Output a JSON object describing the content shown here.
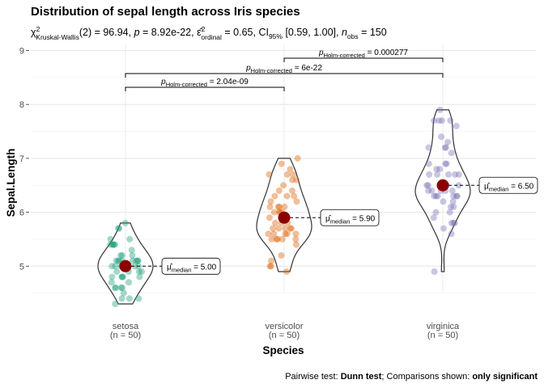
{
  "chart_data": {
    "type": "violin",
    "title": "Distribution of sepal length across Iris species",
    "subtitle": {
      "chi_sym": "χ",
      "chi_sup": "2",
      "chi_sub": "Kruskal-Wallis",
      "stat_text": "(2) = 96.94, ",
      "p_sym": "p",
      "p_text": " = 8.92e-22, ",
      "eps_sym": "ε̂",
      "eps_sup": "2",
      "eps_sub": "ordinal",
      "eps_text": " = 0.65, CI",
      "ci_sub": "95%",
      "ci_text": " [0.59, 1.00], ",
      "n_sym": "n",
      "n_sub": "obs",
      "n_text": " = 150"
    },
    "xlabel": "Species",
    "ylabel": "Sepal.Length",
    "ylim": [
      4.0,
      9.0
    ],
    "yticks": [
      5,
      6,
      7,
      8,
      9
    ],
    "categories": [
      {
        "name": "setosa",
        "n_label": "(n = 50)",
        "median": 5.0,
        "median_label": "5.00",
        "min": 4.3,
        "max": 5.8,
        "color": "#1b9e77",
        "points": [
          5.1,
          4.9,
          4.7,
          4.6,
          5.0,
          5.4,
          4.6,
          5.0,
          4.4,
          4.9,
          5.4,
          4.8,
          4.8,
          4.3,
          5.8,
          5.7,
          5.4,
          5.1,
          5.7,
          5.1,
          5.4,
          5.1,
          4.6,
          5.1,
          4.8,
          5.0,
          5.0,
          5.2,
          5.2,
          4.7,
          4.8,
          5.4,
          5.2,
          5.5,
          4.9,
          5.0,
          5.5,
          4.9,
          4.4,
          5.1,
          5.0,
          4.5,
          4.4,
          5.0,
          5.1,
          4.8,
          5.1,
          4.6,
          5.3,
          5.0
        ]
      },
      {
        "name": "versicolor",
        "n_label": "(n = 50)",
        "median": 5.9,
        "median_label": "5.90",
        "min": 4.9,
        "max": 7.0,
        "color": "#d95f02",
        "points": [
          7.0,
          6.4,
          6.9,
          5.5,
          6.5,
          5.7,
          6.3,
          4.9,
          6.6,
          5.2,
          5.0,
          5.9,
          6.0,
          6.1,
          5.6,
          6.7,
          5.6,
          5.8,
          6.2,
          5.6,
          5.9,
          6.1,
          6.3,
          6.1,
          6.4,
          6.6,
          6.8,
          6.7,
          6.0,
          5.7,
          5.5,
          5.5,
          5.8,
          6.0,
          5.4,
          6.0,
          6.7,
          6.3,
          5.6,
          5.5,
          5.5,
          6.1,
          5.8,
          5.0,
          5.6,
          5.7,
          5.7,
          6.2,
          5.1,
          5.7
        ]
      },
      {
        "name": "virginica",
        "n_label": "(n = 50)",
        "median": 6.5,
        "median_label": "6.50",
        "min": 4.9,
        "max": 7.9,
        "color": "#7570b3",
        "points": [
          6.3,
          5.8,
          7.1,
          6.3,
          6.5,
          7.6,
          4.9,
          7.3,
          6.7,
          7.2,
          6.5,
          6.4,
          6.8,
          5.7,
          5.8,
          6.4,
          6.5,
          7.7,
          7.7,
          6.0,
          6.9,
          5.6,
          7.7,
          6.3,
          6.7,
          7.2,
          6.2,
          6.1,
          6.4,
          7.2,
          7.4,
          7.9,
          6.4,
          6.3,
          6.1,
          7.7,
          6.3,
          6.4,
          6.0,
          6.9,
          6.7,
          6.9,
          5.8,
          6.8,
          6.7,
          6.7,
          6.3,
          6.5,
          6.2,
          5.9
        ]
      }
    ],
    "median_symbol": "μ̂",
    "median_sub": "median",
    "comparisons": [
      {
        "from": 0,
        "to": 1,
        "p_sym": "p",
        "p_sub": "Holm-corrected",
        "p_value": " = 2.04e-09"
      },
      {
        "from": 0,
        "to": 2,
        "p_sym": "p",
        "p_sub": "Holm-corrected",
        "p_value": " = 6e-22"
      },
      {
        "from": 1,
        "to": 2,
        "p_sym": "p",
        "p_sub": "Holm-corrected",
        "p_value": " = 0.000277"
      }
    ],
    "caption": {
      "prefix": "Pairwise test: ",
      "test": "Dunn test",
      "middle": "; Comparisons shown: ",
      "shown": "only significant"
    },
    "median_color": "#8b0000",
    "grid": true
  }
}
